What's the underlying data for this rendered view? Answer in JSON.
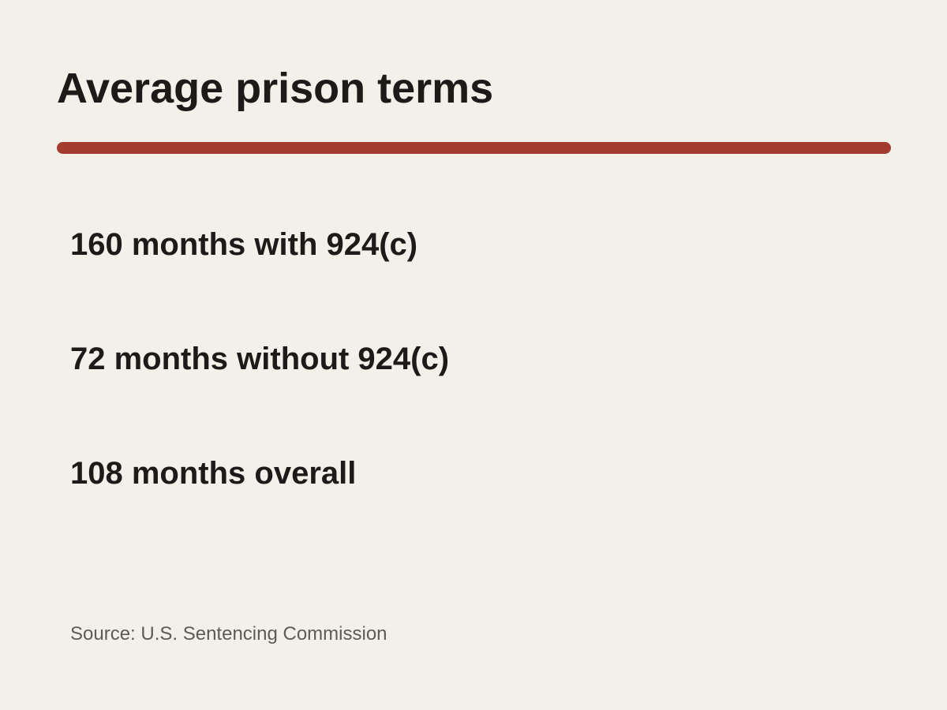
{
  "title": "Average prison terms",
  "accent_color": "#a33b2f",
  "stats": [
    {
      "text": "160 months with 924(c)"
    },
    {
      "text": "72 months without 924(c)"
    },
    {
      "text": "108 months overall"
    }
  ],
  "source": "Source: U.S. Sentencing Commission"
}
